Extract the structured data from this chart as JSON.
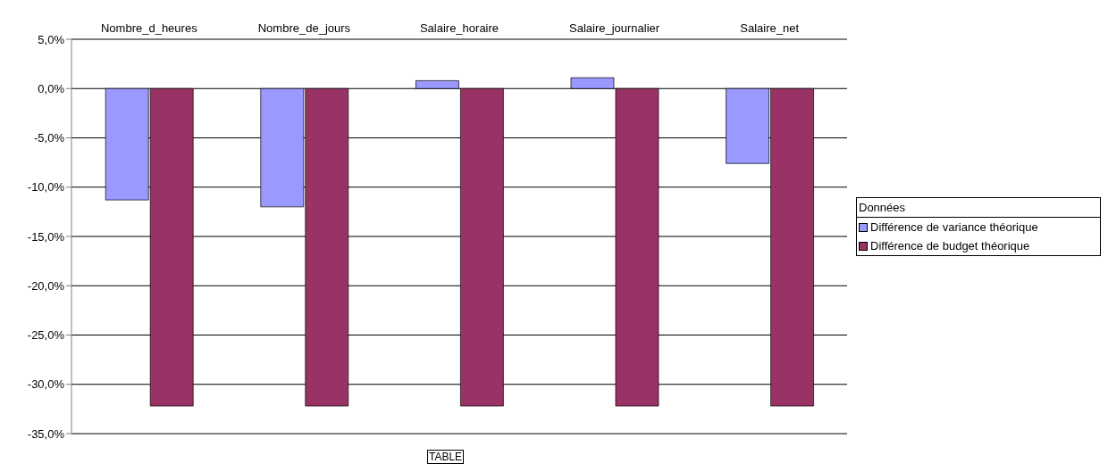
{
  "chart_data": {
    "type": "bar",
    "categories": [
      "Nombre_d_heures",
      "Nombre_de_jours",
      "Salaire_horaire",
      "Salaire_journalier",
      "Salaire_net"
    ],
    "series": [
      {
        "name": "Différence de variance théorique",
        "color": "#9999ff",
        "values": [
          -11.3,
          -12.0,
          0.8,
          1.1,
          -7.6
        ]
      },
      {
        "name": "Différence de budget théorique",
        "color": "#993366",
        "values": [
          -32.2,
          -32.2,
          -32.2,
          -32.2,
          -32.2
        ]
      }
    ],
    "ylim": [
      -35,
      5
    ],
    "yticks": [
      {
        "value": -35,
        "label": "-35,0%"
      },
      {
        "value": -30,
        "label": "-30,0%"
      },
      {
        "value": -25,
        "label": "-25,0%"
      },
      {
        "value": -20,
        "label": "-20,0%"
      },
      {
        "value": -15,
        "label": "-15,0%"
      },
      {
        "value": -10,
        "label": "-10,0%"
      },
      {
        "value": -5,
        "label": "-5,0%"
      },
      {
        "value": 0,
        "label": "0,0%"
      },
      {
        "value": 5,
        "label": "5,0%"
      }
    ],
    "grid": "y",
    "legend": "right",
    "legend_title": "Données",
    "annotations": [
      "TABLE"
    ]
  }
}
